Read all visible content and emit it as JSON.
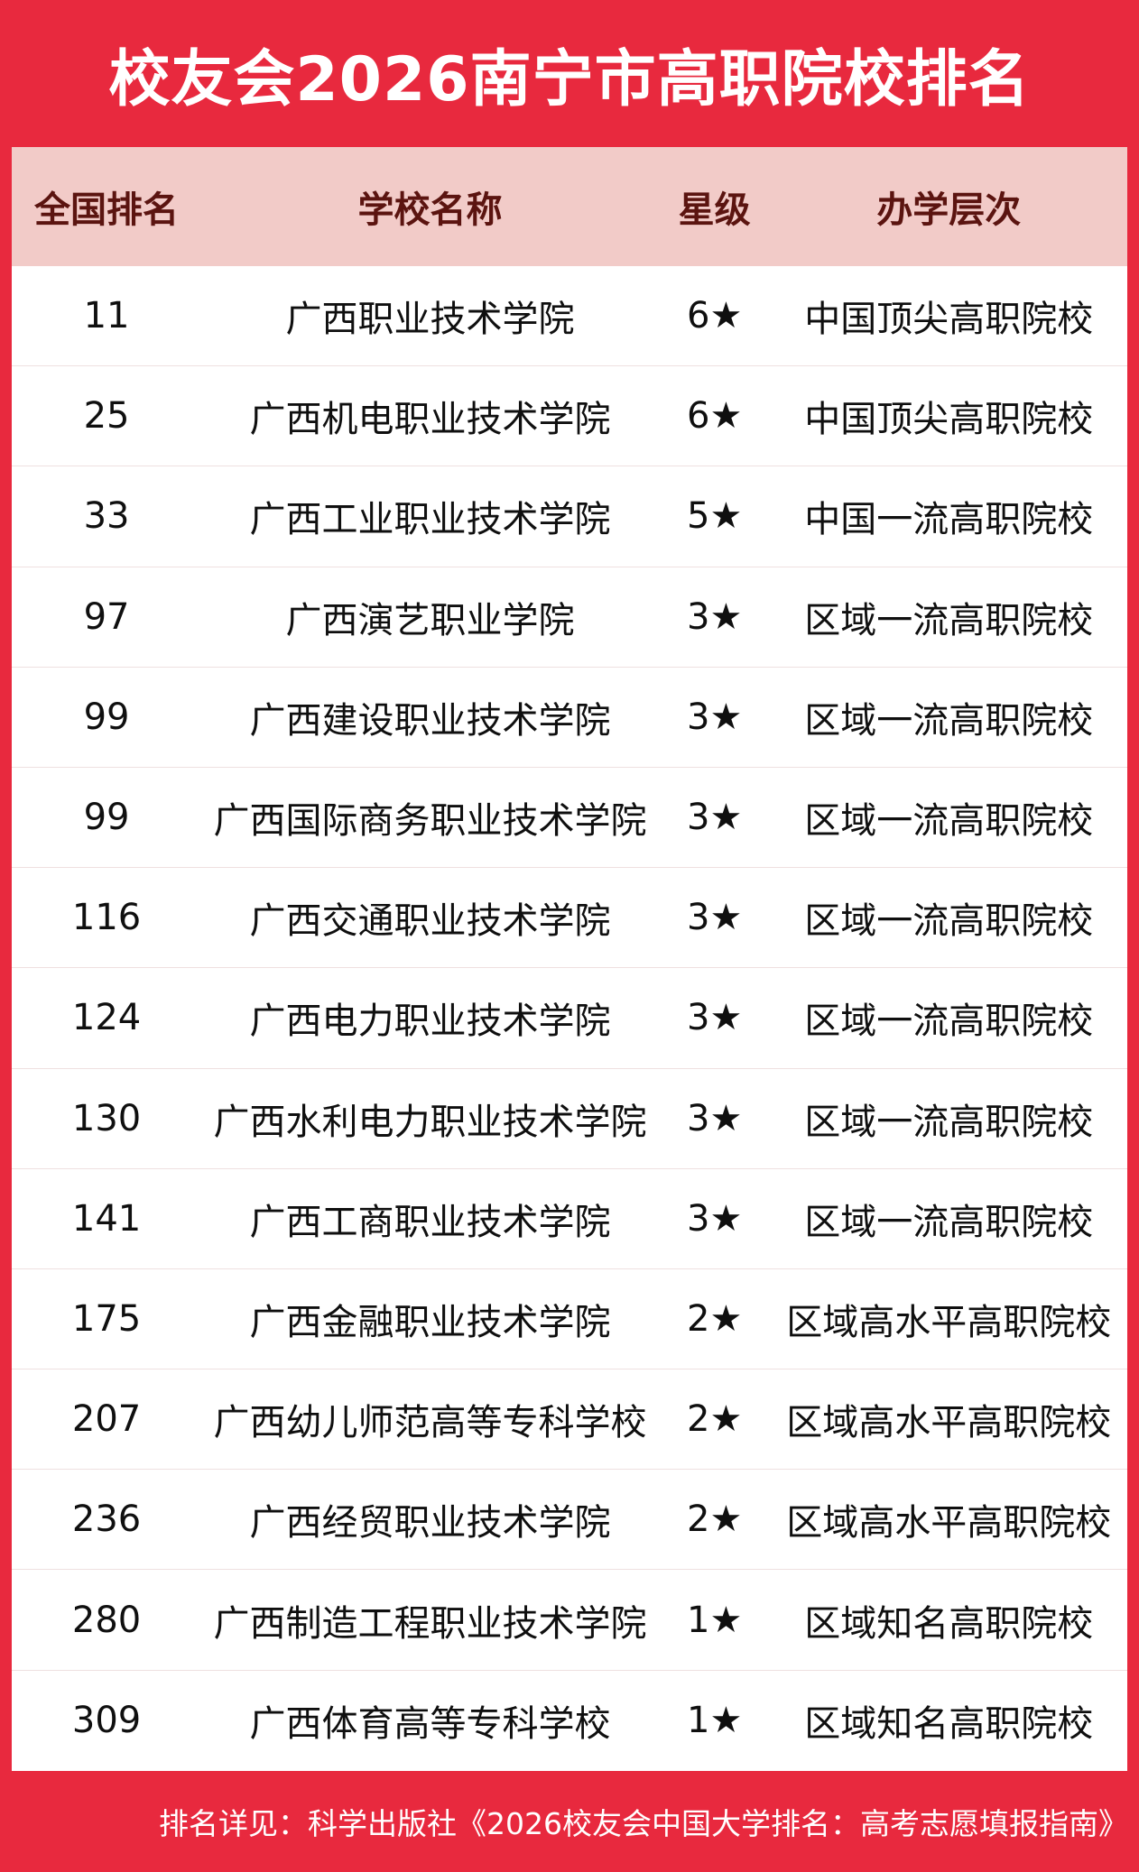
{
  "title": "校友会2026南宁市高职院校排名",
  "theme": {
    "primary_red": "#E8293E",
    "header_pink": "#F2CBC8",
    "header_text_maroon": "#5B1410",
    "row_text": "#0f0f0f",
    "row_divider": "#efe0e0",
    "title_text": "#ffffff"
  },
  "table": {
    "columns": [
      "全国排名",
      "学校名称",
      "星级",
      "办学层次"
    ],
    "rows": [
      {
        "rank": "11",
        "school": "广西职业技术学院",
        "star": "6★",
        "tier": "中国顶尖高职院校"
      },
      {
        "rank": "25",
        "school": "广西机电职业技术学院",
        "star": "6★",
        "tier": "中国顶尖高职院校"
      },
      {
        "rank": "33",
        "school": "广西工业职业技术学院",
        "star": "5★",
        "tier": "中国一流高职院校"
      },
      {
        "rank": "97",
        "school": "广西演艺职业学院",
        "star": "3★",
        "tier": "区域一流高职院校"
      },
      {
        "rank": "99",
        "school": "广西建设职业技术学院",
        "star": "3★",
        "tier": "区域一流高职院校"
      },
      {
        "rank": "99",
        "school": "广西国际商务职业技术学院",
        "star": "3★",
        "tier": "区域一流高职院校"
      },
      {
        "rank": "116",
        "school": "广西交通职业技术学院",
        "star": "3★",
        "tier": "区域一流高职院校"
      },
      {
        "rank": "124",
        "school": "广西电力职业技术学院",
        "star": "3★",
        "tier": "区域一流高职院校"
      },
      {
        "rank": "130",
        "school": "广西水利电力职业技术学院",
        "star": "3★",
        "tier": "区域一流高职院校"
      },
      {
        "rank": "141",
        "school": "广西工商职业技术学院",
        "star": "3★",
        "tier": "区域一流高职院校"
      },
      {
        "rank": "175",
        "school": "广西金融职业技术学院",
        "star": "2★",
        "tier": "区域高水平高职院校"
      },
      {
        "rank": "207",
        "school": "广西幼儿师范高等专科学校",
        "star": "2★",
        "tier": "区域高水平高职院校"
      },
      {
        "rank": "236",
        "school": "广西经贸职业技术学院",
        "star": "2★",
        "tier": "区域高水平高职院校"
      },
      {
        "rank": "280",
        "school": "广西制造工程职业技术学院",
        "star": "1★",
        "tier": "区域知名高职院校"
      },
      {
        "rank": "309",
        "school": "广西体育高等专科学校",
        "star": "1★",
        "tier": "区域知名高职院校"
      }
    ]
  },
  "footer": {
    "note": "排名详见：科学出版社《2026校友会中国大学排名：高考志愿填报指南》"
  }
}
